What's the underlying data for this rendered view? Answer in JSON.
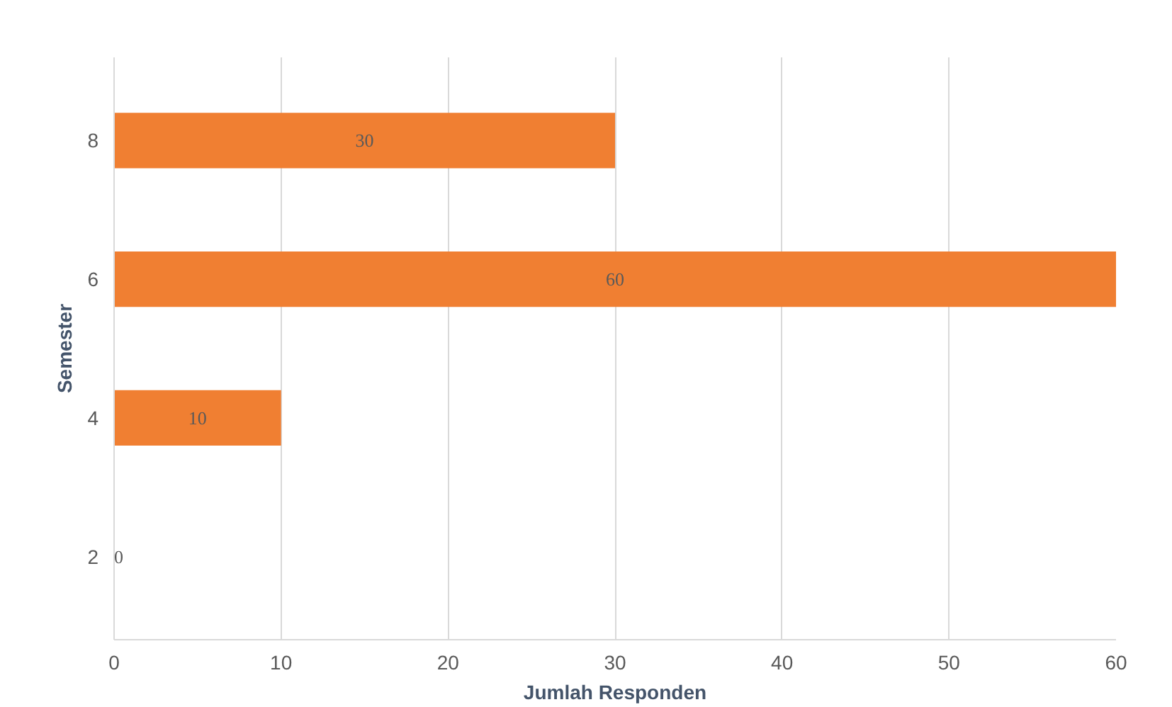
{
  "chart_data": {
    "type": "bar",
    "orientation": "horizontal",
    "xlabel": "Jumlah Responden",
    "ylabel": "Semester",
    "categories": [
      "8",
      "6",
      "4",
      "2"
    ],
    "values": [
      30,
      60,
      10,
      0
    ],
    "color": "#f07f32",
    "xlim": [
      0,
      60
    ],
    "xticks": [
      0,
      10,
      20,
      30,
      40,
      50,
      60
    ],
    "grid": "x",
    "data_labels": true
  }
}
